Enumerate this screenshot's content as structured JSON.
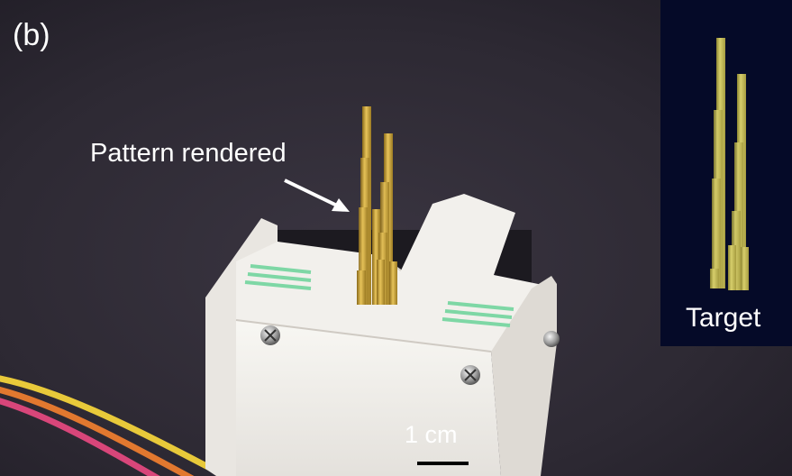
{
  "figure": {
    "panel_label": "(b)",
    "pattern_label": "Pattern rendered",
    "target_label": "Target",
    "scale_label": "1 cm"
  },
  "colors": {
    "background": "#2a2630",
    "device_white": "#f1efeb",
    "pin_gold": "#d2aa3c",
    "target_panel": "#050a28",
    "target_pin": "#c9c060",
    "green_stripes": "#7ed7a5",
    "wire_yellow": "#e8c93a",
    "wire_orange": "#e2782f",
    "wire_pink": "#d8467a"
  },
  "icons": [
    "arrow-icon",
    "screw-icon"
  ]
}
